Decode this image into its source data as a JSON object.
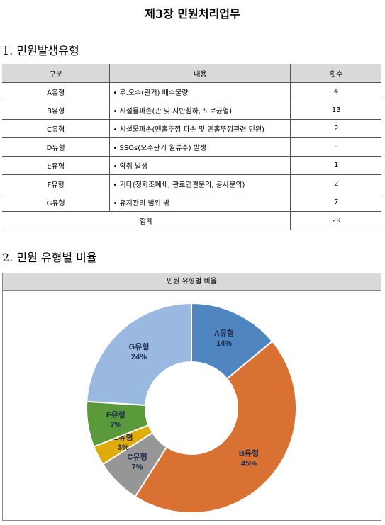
{
  "title": "제3장 민원처리업무",
  "section1": {
    "heading": "1. 민원발생유형"
  },
  "table": {
    "header": [
      "구분",
      "내용",
      "횟수"
    ],
    "rows": [
      [
        "A유형",
        "• 우.오수(관거) 배수불량",
        4
      ],
      [
        "B유형",
        "• 시설물파손(관 및 지반침하, 도로균열)",
        13
      ],
      [
        "C유형",
        "• 시설물파손(맨홀뚜껑 파손 및 맨홀뚜껑관련 민원)",
        2
      ],
      [
        "D유형",
        "• SSOs(오수관거 월류수) 발생",
        "-"
      ],
      [
        "E유형",
        "• 악취 발생",
        1
      ],
      [
        "F유형",
        "• 기타(정화조폐쇄, 관로연결문의, 공사문의)",
        2
      ],
      [
        "G유형",
        "• 유지관리 범위 밖",
        7
      ]
    ],
    "total": [
      "합계",
      29
    ]
  },
  "section2": {
    "heading": "2. 민원 유형별 비율"
  },
  "chart_data": {
    "type": "pie",
    "title": "민원 유형별 비율",
    "donut": true,
    "categories": [
      "A유형",
      "B유형",
      "C유형",
      "E유형",
      "F유형",
      "G유형"
    ],
    "values": [
      14,
      45,
      7,
      3,
      7,
      24
    ],
    "value_labels": [
      "14%",
      "45%",
      "7%",
      "3%",
      "7%",
      "24%"
    ],
    "colors": [
      "#4f86c0",
      "#d97132",
      "#969696",
      "#e0ac0c",
      "#5a9a3b",
      "#9ab9e0"
    ]
  }
}
